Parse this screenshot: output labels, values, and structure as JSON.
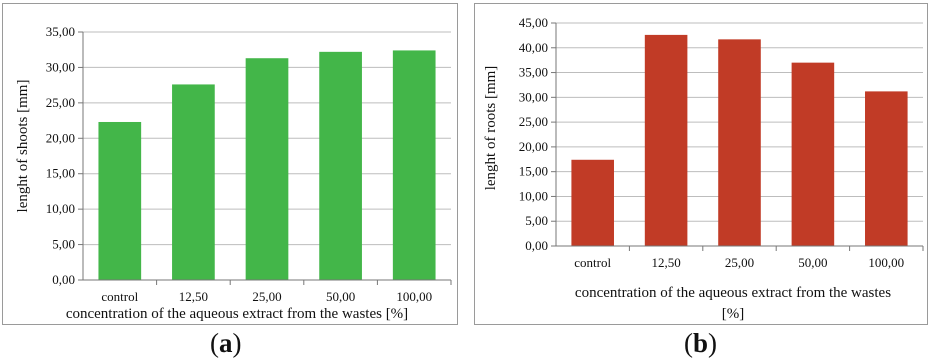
{
  "chart_data": [
    {
      "type": "bar",
      "panel_label_open": "(",
      "panel_label_letter": "a",
      "panel_label_close": ")",
      "categories": [
        "control",
        "12,50",
        "25,00",
        "50,00",
        "100,00"
      ],
      "values": [
        22.3,
        27.6,
        31.3,
        32.2,
        32.4
      ],
      "ylim": [
        0,
        35
      ],
      "yticks": [
        "0,00",
        "5,00",
        "10,00",
        "15,00",
        "20,00",
        "25,00",
        "30,00",
        "35,00"
      ],
      "ylabel": "lenght of shoots [mm]",
      "xlabel": "concentration of the aqueous extract from the wastes [%]",
      "bar_color": "#43b649",
      "grid": true,
      "legend": "none"
    },
    {
      "type": "bar",
      "panel_label_open": "(",
      "panel_label_letter": "b",
      "panel_label_close": ")",
      "categories": [
        "control",
        "12,50",
        "25,00",
        "50,00",
        "100,00"
      ],
      "values": [
        17.4,
        42.6,
        41.7,
        37.0,
        31.2
      ],
      "ylim": [
        0,
        45
      ],
      "yticks": [
        "0,00",
        "5,00",
        "10,00",
        "15,00",
        "20,00",
        "25,00",
        "30,00",
        "35,00",
        "40,00",
        "45,00"
      ],
      "ylabel": "lenght of roots [mm]",
      "xlabel_line1": "concentration of the aqueous extract from the wastes",
      "xlabel_line2": "[%]",
      "bar_color": "#c13b26",
      "grid": true,
      "legend": "none"
    }
  ]
}
